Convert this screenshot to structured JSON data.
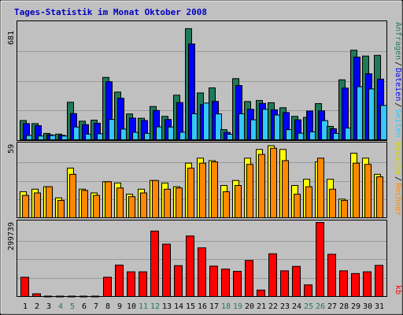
{
  "title": "Tages-Statistik im Monat Oktober 2008",
  "colors": {
    "background": "#c0c0c0",
    "title": "#0000c0",
    "anfragen": "#207a58",
    "dateien": "#0000ff",
    "seiten": "#34c8f8",
    "besuche": "#ffff00",
    "rechner": "#ff8800",
    "kb": "#ff0000",
    "weekend_label": "#207a58",
    "weekday_label": "#000000"
  },
  "right_labels": {
    "anfragen": "Anfragen",
    "dateien": "Dateien",
    "seiten": "Seiten",
    "besuche": "Besuche",
    "rechner": "Rechner",
    "kb": "kb",
    "sep": "/"
  },
  "chart_data": [
    {
      "type": "bar",
      "name": "top",
      "axis_max_label": "681",
      "ylim": [
        0,
        681
      ],
      "categories": [
        "1",
        "2",
        "3",
        "4",
        "5",
        "6",
        "7",
        "8",
        "9",
        "10",
        "11",
        "12",
        "13",
        "14",
        "15",
        "16",
        "17",
        "18",
        "19",
        "20",
        "21",
        "22",
        "23",
        "24",
        "25",
        "26",
        "27",
        "28",
        "29",
        "30",
        "31"
      ],
      "weekend_days": [
        "4",
        "5",
        "11",
        "12",
        "18",
        "19",
        "25",
        "26"
      ],
      "series": [
        {
          "name": "Anfragen",
          "values": [
            112,
            94,
            37,
            33,
            218,
            108,
            114,
            362,
            277,
            150,
            125,
            193,
            136,
            259,
            645,
            272,
            301,
            59,
            355,
            222,
            228,
            215,
            186,
            136,
            130,
            210,
            78,
            348,
            520,
            486,
            490
          ]
        },
        {
          "name": "Dateien",
          "values": [
            94,
            82,
            29,
            26,
            152,
            88,
            96,
            337,
            241,
            126,
            112,
            170,
            118,
            216,
            556,
            204,
            223,
            43,
            315,
            177,
            211,
            174,
            158,
            116,
            167,
            168,
            64,
            300,
            480,
            383,
            352
          ]
        },
        {
          "name": "Seiten",
          "values": [
            25,
            22,
            25,
            22,
            74,
            33,
            35,
            118,
            62,
            43,
            37,
            75,
            74,
            44,
            151,
            213,
            150,
            32,
            151,
            116,
            177,
            144,
            59,
            38,
            46,
            111,
            37,
            68,
            308,
            295,
            199
          ]
        }
      ]
    },
    {
      "type": "bar",
      "name": "middle",
      "axis_max_label": "59",
      "ylim": [
        0,
        59
      ],
      "categories": [
        "1",
        "2",
        "3",
        "4",
        "5",
        "6",
        "7",
        "8",
        "9",
        "10",
        "11",
        "12",
        "13",
        "14",
        "15",
        "16",
        "17",
        "18",
        "19",
        "20",
        "21",
        "22",
        "23",
        "24",
        "25",
        "26",
        "27",
        "28",
        "29",
        "30",
        "31"
      ],
      "series": [
        {
          "name": "Besuche",
          "values": [
            21,
            23,
            25,
            16,
            40,
            23,
            20,
            29,
            28,
            19,
            23,
            30,
            28,
            25,
            44,
            48,
            46,
            26,
            30,
            48,
            55,
            58,
            55,
            26,
            31,
            45,
            31,
            15,
            52,
            48,
            35
          ]
        },
        {
          "name": "Rechner",
          "values": [
            18,
            20,
            25,
            14,
            35,
            22,
            18,
            29,
            24,
            17,
            20,
            30,
            23,
            24,
            40,
            44,
            45,
            21,
            26,
            43,
            51,
            56,
            46,
            19,
            25,
            48,
            23,
            14,
            44,
            43,
            33
          ]
        }
      ]
    },
    {
      "type": "bar",
      "name": "bottom",
      "axis_max_label": "299739",
      "ylim": [
        0,
        299739
      ],
      "categories": [
        "1",
        "2",
        "3",
        "4",
        "5",
        "6",
        "7",
        "8",
        "9",
        "10",
        "11",
        "12",
        "13",
        "14",
        "15",
        "16",
        "17",
        "18",
        "19",
        "20",
        "21",
        "22",
        "23",
        "24",
        "25",
        "26",
        "27",
        "28",
        "29",
        "30",
        "31"
      ],
      "series": [
        {
          "name": "kb",
          "values": [
            78000,
            11000,
            0,
            0,
            0,
            0,
            0,
            78000,
            127000,
            100000,
            100000,
            265000,
            212000,
            125000,
            245000,
            197000,
            123000,
            111000,
            102000,
            146000,
            26000,
            173000,
            104000,
            122000,
            47000,
            311000,
            171000,
            104000,
            93000,
            100000,
            126000
          ]
        }
      ]
    }
  ]
}
